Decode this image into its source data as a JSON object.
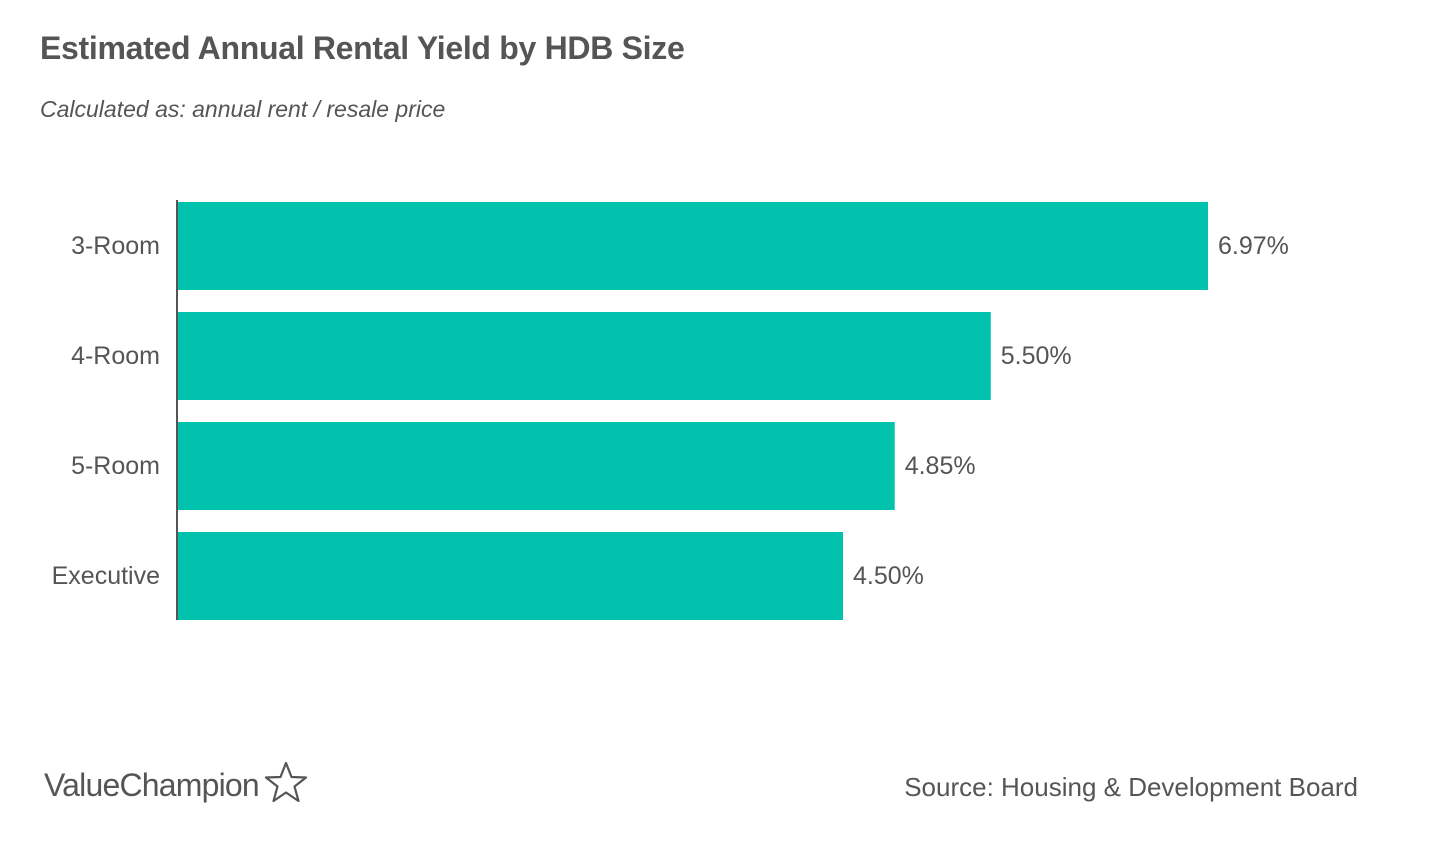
{
  "chart_data": {
    "type": "bar",
    "orientation": "horizontal",
    "title": "Estimated Annual Rental Yield by HDB Size",
    "subtitle": "Calculated as: annual rent / resale price",
    "categories": [
      "3-Room",
      "4-Room",
      "5-Room",
      "Executive"
    ],
    "values": [
      6.97,
      5.5,
      4.85,
      4.5
    ],
    "value_labels": [
      "6.97%",
      "5.50%",
      "4.85%",
      "4.50%"
    ],
    "xlim": [
      0,
      6.97
    ],
    "grid": false,
    "legend": "none",
    "bar_color": "#00c2ad",
    "text_color": "#555555"
  },
  "footer": {
    "logo_text": "ValueChampion",
    "logo_icon": "star-outline-icon",
    "source": "Source: Housing & Development Board"
  }
}
